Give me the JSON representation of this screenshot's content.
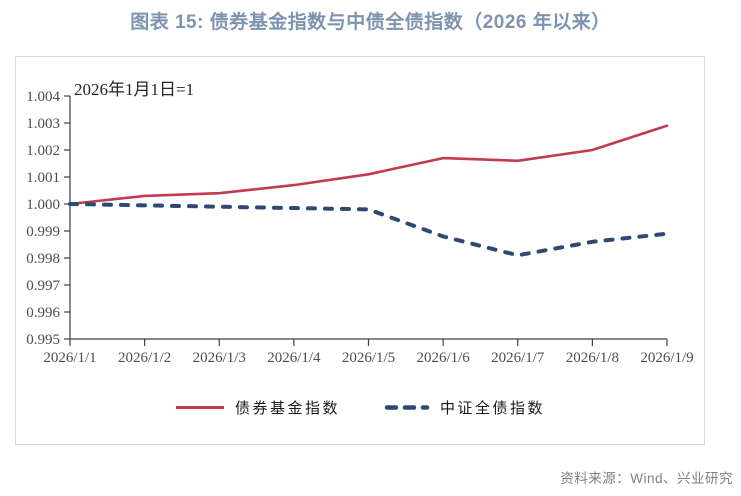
{
  "page": {
    "title_color": "#7e93af",
    "source_note": "资料来源：Wind、兴业研究",
    "source_color": "#7f7f7f",
    "background": "#ffffff",
    "panel_border": "#d8d8d8"
  },
  "chart_data": {
    "type": "line",
    "title": "图表 15: 债券基金指数与中债全债指数（2026 年以来）",
    "annotation": "2026年1月1日=1",
    "categories": [
      "2026/1/1",
      "2026/1/2",
      "2026/1/3",
      "2026/1/4",
      "2026/1/5",
      "2026/1/6",
      "2026/1/7",
      "2026/1/8",
      "2026/1/9"
    ],
    "series": [
      {
        "name": "债券基金指数",
        "color": "#c23a50",
        "style": "solid",
        "values": [
          1.0,
          1.0003,
          1.0004,
          1.0007,
          1.0011,
          1.0017,
          1.0016,
          1.002,
          1.0029
        ]
      },
      {
        "name": "中证全债指数",
        "color": "#2e4a72",
        "style": "dashed",
        "values": [
          1.0,
          0.99995,
          0.9999,
          0.99985,
          0.9998,
          0.9988,
          0.9981,
          0.9986,
          0.9989
        ]
      }
    ],
    "ylim": [
      0.995,
      1.004
    ],
    "y_ticks": [
      "1.004",
      "1.003",
      "1.002",
      "1.001",
      "1.000",
      "0.999",
      "0.998",
      "0.997",
      "0.996",
      "0.995"
    ],
    "xlabel": "",
    "ylabel": "",
    "grid": false,
    "legend_position": "bottom",
    "axis_color": "#404040",
    "tick_label_color": "#4d4d4d"
  }
}
